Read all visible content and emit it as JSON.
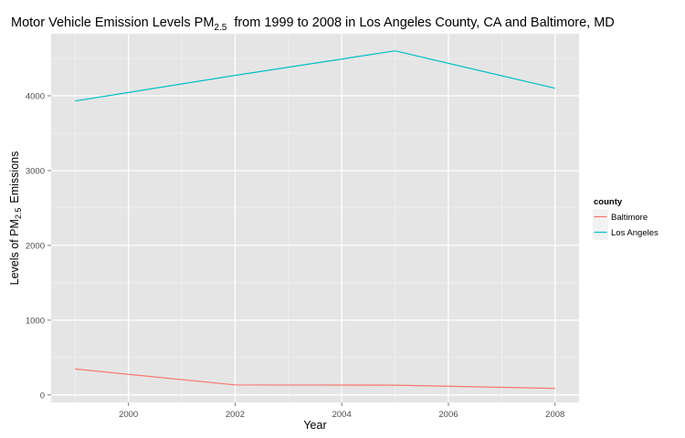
{
  "chart_data": {
    "type": "line",
    "title": {
      "prefix": "Motor Vehicle Emission Levels PM",
      "subscript": "2.5",
      "suffix": "from 1999 to 2008 in Los Angeles County, CA and Baltimore, MD"
    },
    "xlabel": "Year",
    "ylabel": {
      "prefix": "Levels of PM",
      "subscript": "2.5",
      "suffix": "Emissions"
    },
    "x": [
      1999,
      2002,
      2005,
      2008
    ],
    "xlim": [
      1998.55,
      2008.45
    ],
    "ylim": [
      -100,
      4830
    ],
    "x_ticks": [
      2000,
      2002,
      2004,
      2006,
      2008
    ],
    "y_ticks": [
      0,
      1000,
      2000,
      3000,
      4000
    ],
    "grid": true,
    "legend": {
      "title": "county",
      "placement": "right"
    },
    "series": [
      {
        "name": "Baltimore",
        "color": "#f8766d",
        "values": [
          346.82,
          134.31,
          130.43,
          88.28
        ]
      },
      {
        "name": "Los Angeles",
        "color": "#00bfc4",
        "values": [
          3931.12,
          4274.03,
          4601.41,
          4101.32
        ]
      }
    ]
  }
}
